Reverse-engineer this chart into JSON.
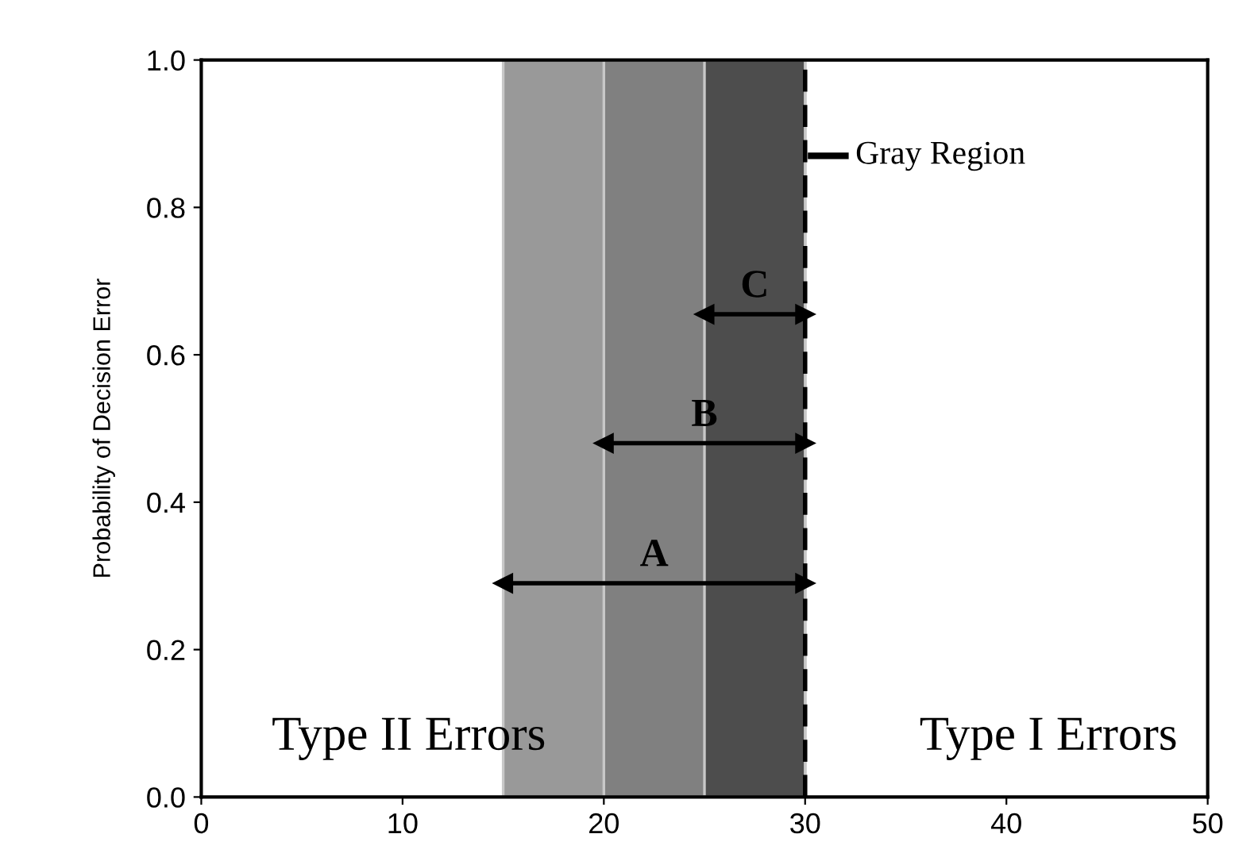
{
  "chart_data": {
    "type": "line",
    "ylabel": "Probability of Decision Error",
    "xlim": [
      0,
      50
    ],
    "xticks": [
      0,
      10,
      20,
      30,
      40,
      50
    ],
    "ylim": [
      0,
      1.0
    ],
    "yticks": [
      {
        "value": 0,
        "label": "0.0"
      },
      0.2,
      0.4,
      0.6,
      0.8,
      {
        "value": 1,
        "label": "1.0"
      }
    ],
    "series": [
      {
        "name": "A",
        "color": "#000000",
        "x": [
          15,
          30
        ],
        "values": [
          0.29,
          0.29
        ]
      },
      {
        "name": "B",
        "color": "#000000",
        "x": [
          20,
          30
        ],
        "values": [
          0.48,
          0.48
        ]
      },
      {
        "name": "C",
        "color": "#000000",
        "x": [
          25,
          30
        ],
        "values": [
          0.655,
          0.655
        ]
      }
    ],
    "bands": [
      {
        "axis": "x",
        "from": 15,
        "to": 30,
        "color": "#999999"
      },
      {
        "axis": "x",
        "from": 20,
        "to": 30,
        "color": "#808080"
      },
      {
        "axis": "x",
        "from": 25,
        "to": 30,
        "color": "#4d4d4d"
      }
    ],
    "ref_lines": [
      {
        "axis": "x",
        "value": 30,
        "label": "Gray Region",
        "line_style": "dashed",
        "color": "#000000"
      }
    ],
    "annotations": [
      "Type II Errors",
      "Type I Errors"
    ],
    "marker": "triangle"
  }
}
